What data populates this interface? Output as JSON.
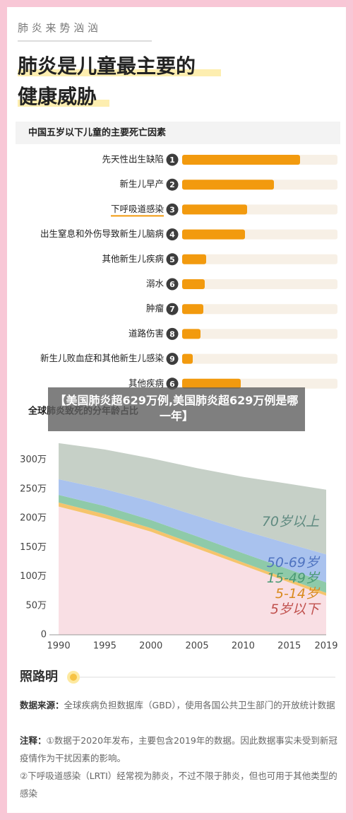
{
  "header": {
    "kicker": "肺 炎 来 势 汹 汹",
    "title_lines": [
      "肺炎是儿童最主要的",
      "健康威胁"
    ]
  },
  "chart_data": [
    {
      "type": "bar",
      "orientation": "horizontal",
      "title": "中国五岁以下儿童的主要死亡因素",
      "categories": [
        "先天性出生缺陷",
        "新生儿早产",
        "下呼吸道感染",
        "出生窒息和外伤导致新生儿脑病",
        "其他新生儿疾病",
        "溺水",
        "肿瘤",
        "道路伤害",
        "新生儿败血症和其他新生儿感染",
        "其他疾病"
      ],
      "ranks": [
        1,
        2,
        3,
        4,
        5,
        6,
        7,
        8,
        9,
        6
      ],
      "values": [
        167,
        130,
        92,
        89,
        34,
        32,
        30,
        26,
        15,
        83
      ],
      "color": "#f29a0e",
      "highlight": 2
    },
    {
      "type": "area",
      "stacked": true,
      "title": "全球肺炎致死的分年龄占比",
      "x": [
        1990,
        1995,
        2000,
        2005,
        2010,
        2015,
        2019
      ],
      "xlim": [
        1989,
        2019
      ],
      "xticks": [
        1990,
        1995,
        2000,
        2005,
        2010,
        2015,
        2019
      ],
      "ylim": [
        0,
        330
      ],
      "yticks": [
        0,
        {
          "value": 50,
          "label": "50万"
        },
        {
          "value": 100,
          "label": "100万"
        },
        {
          "value": 150,
          "label": "150万"
        },
        {
          "value": 200,
          "label": "200万"
        },
        {
          "value": 250,
          "label": "250万"
        },
        {
          "value": 300,
          "label": "300万"
        }
      ],
      "series": [
        {
          "name": "5岁以下",
          "color": "#f9dfe4",
          "label_color": "#c0504d",
          "values": [
            220,
            200,
            177,
            148,
            119,
            90,
            67
          ]
        },
        {
          "name": "5-14岁",
          "color": "#f5c46c",
          "label_color": "#d98a1e",
          "values": [
            7,
            7,
            6,
            6,
            5,
            5,
            5
          ]
        },
        {
          "name": "15-49岁",
          "color": "#8ecaa9",
          "label_color": "#4a9a74",
          "values": [
            13,
            14,
            14,
            15,
            16,
            17,
            18
          ]
        },
        {
          "name": "50-69岁",
          "color": "#a9c2ee",
          "label_color": "#4f73c0",
          "values": [
            27,
            29,
            32,
            35,
            39,
            44,
            48
          ]
        },
        {
          "name": "70岁以上",
          "color": "#c6d0c7",
          "label_color": "#5f8a80",
          "values": [
            62,
            68,
            74,
            82,
            92,
            103,
            111
          ]
        }
      ]
    }
  ],
  "overlay": "【美国肺炎超629万例,美国肺炎超629万例是哪一年】",
  "footer": {
    "logo": "照路明",
    "source_label": "数据来源：",
    "source": "全球疾病负担数据库（GBD），使用各国公共卫生部门的开放统计数据",
    "note_label": "注释：",
    "note_1": "①数据于2020年发布，主要包含2019年的数据。因此数据事实未受到新冠疫情作为干扰因素的影响。",
    "note_2": "②下呼吸道感染（LRTI）经常视为肺炎，不过不限于肺炎，但也可用于其他类型的感染"
  }
}
